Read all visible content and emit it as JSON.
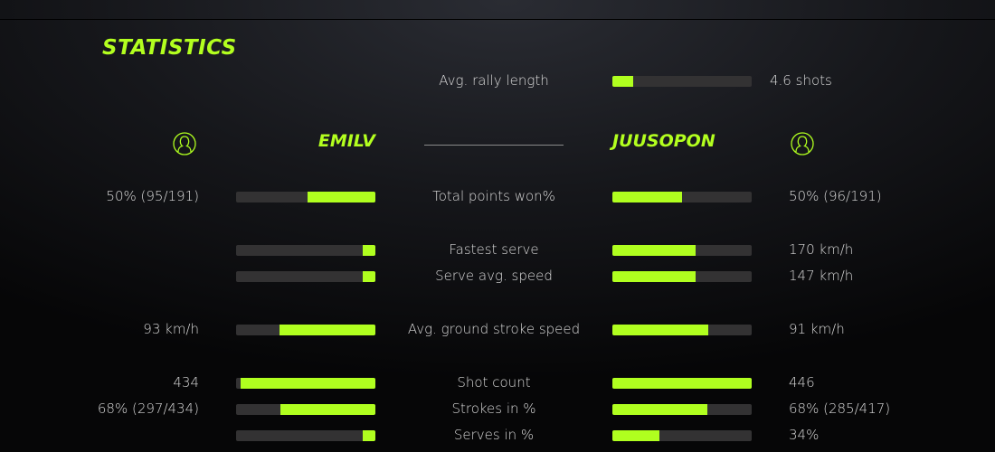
{
  "title": "STATISTICS",
  "accent": "#b0ff1f",
  "rally": {
    "label": "Avg. rally length",
    "value": "4.6 shots",
    "fill": 0.15
  },
  "players": {
    "left": {
      "name": "EMILV",
      "icon": "user-circle-icon"
    },
    "right": {
      "name": "JUUSOPON",
      "icon": "user-circle-icon"
    }
  },
  "rows": [
    {
      "label": "Total points won%",
      "left": "50% (95/191)",
      "right": "50% (96/191)",
      "left_fill": 0.49,
      "right_fill": 0.5
    },
    {
      "label": "Fastest serve",
      "left": "",
      "right": "170 km/h",
      "left_fill": 0.09,
      "right_fill": 0.6
    },
    {
      "label": "Serve avg. speed",
      "left": "",
      "right": "147 km/h",
      "left_fill": 0.09,
      "right_fill": 0.6
    },
    {
      "label": "Avg. ground stroke speed",
      "left": "93 km/h",
      "right": "91 km/h",
      "left_fill": 0.69,
      "right_fill": 0.69
    },
    {
      "label": "Shot count",
      "left": "434",
      "right": "446",
      "left_fill": 0.97,
      "right_fill": 1.0
    },
    {
      "label": "Strokes in %",
      "left": "68% (297/434)",
      "right": "68% (285/417)",
      "left_fill": 0.68,
      "right_fill": 0.68
    },
    {
      "label": "Serves in %",
      "left": "",
      "right": "34%",
      "left_fill": 0.09,
      "right_fill": 0.34
    }
  ]
}
